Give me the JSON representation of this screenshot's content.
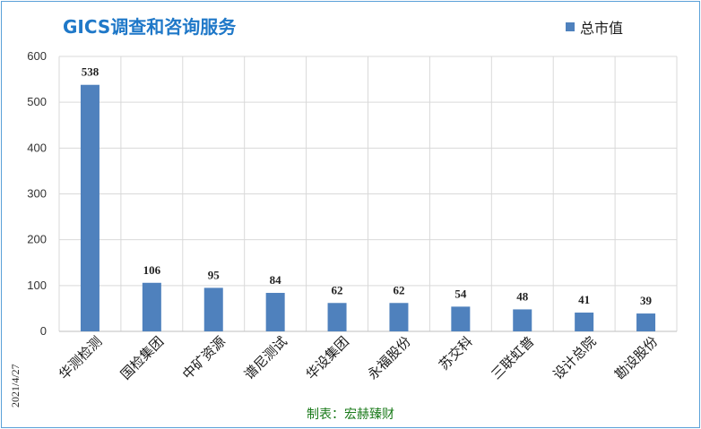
{
  "title": "GICS调查和咨询服务",
  "legend_label": "总市值",
  "side_date": "2021/4/27",
  "footer": "制表：宏赫臻财",
  "colors": {
    "bar": "#4f81bd",
    "title": "#1f78c8",
    "footer": "#1a7a1a",
    "grid": "#d9d9d9"
  },
  "chart_data": {
    "type": "bar",
    "title": "GICS调查和咨询服务",
    "categories": [
      "华测检测",
      "国检集团",
      "中矿资源",
      "谱尼测试",
      "华设集团",
      "永福股份",
      "苏交科",
      "三联虹普",
      "设计总院",
      "勘设股份"
    ],
    "series": [
      {
        "name": "总市值",
        "values": [
          538,
          106,
          95,
          84,
          62,
          62,
          54,
          48,
          41,
          39
        ]
      }
    ],
    "ylim": [
      0,
      600
    ],
    "yticks": [
      0,
      100,
      200,
      300,
      400,
      500,
      600
    ],
    "grid": true,
    "legend": "top-right",
    "xlabel": "",
    "ylabel": ""
  }
}
